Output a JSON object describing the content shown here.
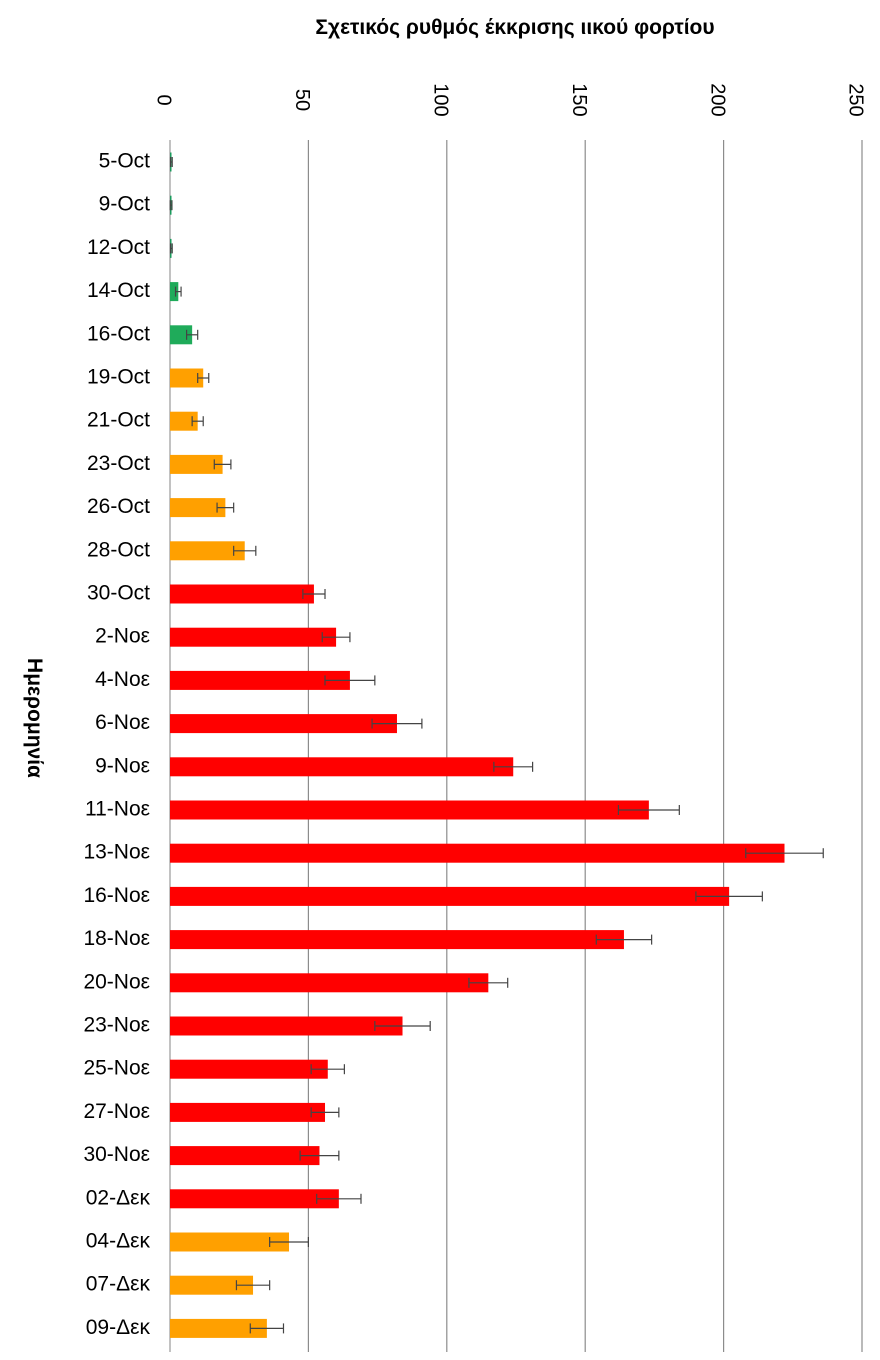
{
  "chart_data": {
    "type": "bar",
    "orientation": "horizontal",
    "title": "",
    "xlabel": "Σχετικός ρυθμός έκκρισης ιικού φορτίου",
    "ylabel": "Ημερομηνία",
    "xlim": [
      0,
      250
    ],
    "x_ticks": [
      0,
      50,
      100,
      150,
      200,
      250
    ],
    "grid": true,
    "legend": "none",
    "categories": [
      "5-Oct",
      "9-Oct",
      "12-Oct",
      "14-Oct",
      "16-Oct",
      "19-Oct",
      "21-Oct",
      "23-Oct",
      "26-Oct",
      "28-Oct",
      "30-Oct",
      "2-Νοε",
      "4-Νοε",
      "6-Νοε",
      "9-Νοε",
      "11-Νοε",
      "13-Νοε",
      "16-Νοε",
      "18-Νοε",
      "20-Νοε",
      "23-Νοε",
      "25-Νοε",
      "27-Νοε",
      "30-Νοε",
      "02-Δεκ",
      "04-Δεκ",
      "07-Δεκ",
      "09-Δεκ"
    ],
    "values": [
      0.5,
      0.4,
      0.5,
      3,
      8,
      12,
      10,
      19,
      20,
      27,
      52,
      60,
      65,
      82,
      124,
      173,
      222,
      202,
      164,
      115,
      84,
      57,
      56,
      54,
      61,
      43,
      30,
      35
    ],
    "errors": [
      0.3,
      0.3,
      0.3,
      1,
      2,
      2,
      2,
      3,
      3,
      4,
      4,
      5,
      9,
      9,
      7,
      11,
      14,
      12,
      10,
      7,
      10,
      6,
      5,
      7,
      8,
      7,
      6,
      6
    ],
    "colors": [
      "#1a9b5c",
      "#1a9b5c",
      "#1a9b5c",
      "#1fab5a",
      "#1fab5a",
      "#ffa000",
      "#ffa000",
      "#ffa000",
      "#ffa000",
      "#ffa000",
      "#ff0000",
      "#ff0000",
      "#ff0000",
      "#ff0000",
      "#ff0000",
      "#ff0000",
      "#ff0000",
      "#ff0000",
      "#ff0000",
      "#ff0000",
      "#ff0000",
      "#ff0000",
      "#ff0000",
      "#ff0000",
      "#ff0000",
      "#ffa000",
      "#ffa000",
      "#ffa000"
    ]
  }
}
